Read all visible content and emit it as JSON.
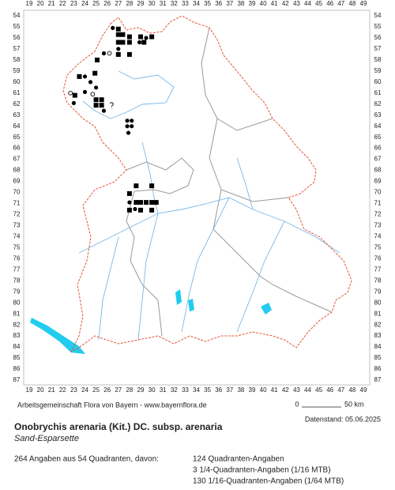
{
  "map": {
    "columns": [
      19,
      20,
      21,
      22,
      23,
      24,
      25,
      26,
      27,
      28,
      29,
      30,
      31,
      32,
      33,
      34,
      35,
      36,
      37,
      38,
      39,
      40,
      41,
      42,
      43,
      44,
      45,
      46,
      47,
      48,
      49
    ],
    "rows": [
      54,
      55,
      56,
      57,
      58,
      59,
      60,
      61,
      62,
      63,
      64,
      65,
      66,
      67,
      68,
      69,
      70,
      71,
      72,
      73,
      74,
      75,
      76,
      77,
      78,
      79,
      80,
      81,
      82,
      83,
      84,
      85,
      86,
      87
    ],
    "markers": [
      {
        "col": 26.5,
        "row": 55.1,
        "shape": "dot"
      },
      {
        "col": 27,
        "row": 55.2,
        "shape": "square"
      },
      {
        "col": 27,
        "row": 55.7,
        "shape": "square"
      },
      {
        "col": 27.4,
        "row": 55.7,
        "shape": "square"
      },
      {
        "col": 28,
        "row": 55.9,
        "shape": "square"
      },
      {
        "col": 29,
        "row": 55.9,
        "shape": "square"
      },
      {
        "col": 30,
        "row": 55.9,
        "shape": "square"
      },
      {
        "col": 29.5,
        "row": 56,
        "shape": "dot"
      },
      {
        "col": 27,
        "row": 56.4,
        "shape": "square"
      },
      {
        "col": 27.4,
        "row": 56.4,
        "shape": "square"
      },
      {
        "col": 28,
        "row": 56.4,
        "shape": "square"
      },
      {
        "col": 28.9,
        "row": 56.4,
        "shape": "dot"
      },
      {
        "col": 29.3,
        "row": 56.4,
        "shape": "square"
      },
      {
        "col": 27,
        "row": 57,
        "shape": "dot"
      },
      {
        "col": 27,
        "row": 57.5,
        "shape": "square"
      },
      {
        "col": 28,
        "row": 57.5,
        "shape": "square"
      },
      {
        "col": 25.7,
        "row": 57.4,
        "shape": "dot"
      },
      {
        "col": 26.2,
        "row": 57.4,
        "shape": "open"
      },
      {
        "col": 25.1,
        "row": 58,
        "shape": "square"
      },
      {
        "col": 23.5,
        "row": 59.5,
        "shape": "square"
      },
      {
        "col": 24,
        "row": 59.5,
        "shape": "dot"
      },
      {
        "col": 24.5,
        "row": 60,
        "shape": "dot"
      },
      {
        "col": 24.9,
        "row": 59.2,
        "shape": "square"
      },
      {
        "col": 25,
        "row": 60.5,
        "shape": "dot"
      },
      {
        "col": 24,
        "row": 60.9,
        "shape": "dot"
      },
      {
        "col": 22.7,
        "row": 61,
        "shape": "open"
      },
      {
        "col": 23.1,
        "row": 61.2,
        "shape": "square"
      },
      {
        "col": 23,
        "row": 61.9,
        "shape": "dot"
      },
      {
        "col": 24.7,
        "row": 61.1,
        "shape": "open"
      },
      {
        "col": 25,
        "row": 61.6,
        "shape": "square"
      },
      {
        "col": 25.5,
        "row": 61.6,
        "shape": "square"
      },
      {
        "col": 25,
        "row": 62.1,
        "shape": "square"
      },
      {
        "col": 25.5,
        "row": 62.1,
        "shape": "square"
      },
      {
        "col": 25.7,
        "row": 62.6,
        "shape": "dot"
      },
      {
        "col": 26.4,
        "row": 62.1,
        "shape": "question"
      },
      {
        "col": 27.8,
        "row": 63.5,
        "shape": "dot"
      },
      {
        "col": 28.2,
        "row": 63.5,
        "shape": "dot"
      },
      {
        "col": 27.8,
        "row": 64,
        "shape": "dot"
      },
      {
        "col": 28.2,
        "row": 64,
        "shape": "dot"
      },
      {
        "col": 27.9,
        "row": 64.6,
        "shape": "dot"
      },
      {
        "col": 28.6,
        "row": 69.4,
        "shape": "square"
      },
      {
        "col": 30,
        "row": 69.4,
        "shape": "square"
      },
      {
        "col": 28,
        "row": 70.1,
        "shape": "square"
      },
      {
        "col": 28,
        "row": 70.9,
        "shape": "dot"
      },
      {
        "col": 28.6,
        "row": 70.9,
        "shape": "square"
      },
      {
        "col": 29,
        "row": 70.9,
        "shape": "square"
      },
      {
        "col": 29.5,
        "row": 70.9,
        "shape": "square"
      },
      {
        "col": 30,
        "row": 70.9,
        "shape": "square"
      },
      {
        "col": 30.4,
        "row": 70.9,
        "shape": "square"
      },
      {
        "col": 28,
        "row": 71.6,
        "shape": "square"
      },
      {
        "col": 28.5,
        "row": 71.5,
        "shape": "dot"
      },
      {
        "col": 29,
        "row": 71.6,
        "shape": "square"
      },
      {
        "col": 30,
        "row": 71.6,
        "shape": "square"
      }
    ]
  },
  "footer": {
    "credit": "Arbeitsgemeinschaft Flora von Bayern - www.bayernflora.de",
    "scale_start": "0",
    "scale_end": "50 km",
    "date": "Datenstand: 05.06.2025",
    "species": "Onobrychis arenaria (Kit.) DC. subsp. arenaria",
    "common_name": "Sand-Esparsette",
    "summary": "264 Angaben aus 54 Quadranten, davon:",
    "counts": [
      "124 Quadranten-Angaben",
      "3 1/4-Quadranten-Angaben (1/16 MTB)",
      "130 1/16-Quadranten-Angaben (1/64 MTB)"
    ]
  }
}
